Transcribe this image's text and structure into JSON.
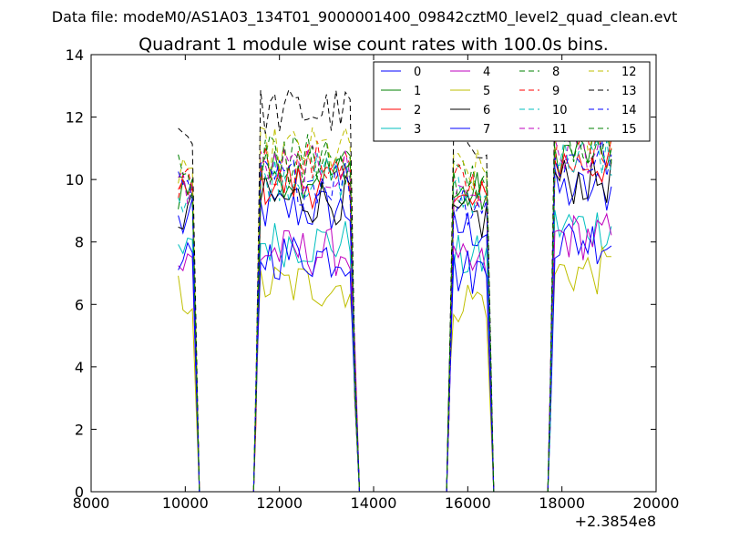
{
  "chart_data": {
    "type": "line",
    "suptitle": "Data file: modeM0/AS1A03_134T01_9000001400_09842cztM0_level2_quad_clean.evt",
    "title": "Quadrant 1 module wise count rates with 100.0s bins.",
    "xlabel": "",
    "ylabel": "",
    "offset_label": "+2.3854e8",
    "xlim": [
      8000,
      20000
    ],
    "ylim": [
      0,
      14
    ],
    "x_ticks": [
      "8000",
      "10000",
      "12000",
      "14000",
      "16000",
      "18000",
      "20000"
    ],
    "y_ticks": [
      "0",
      "2",
      "4",
      "6",
      "8",
      "10",
      "12",
      "14"
    ],
    "legend_position": "top-right",
    "legend_columns": 4,
    "segments": [
      {
        "start": 9850,
        "end": 10200
      },
      {
        "start": 11500,
        "end": 13600
      },
      {
        "start": 15600,
        "end": 16450
      },
      {
        "start": 17750,
        "end": 19050
      }
    ],
    "zero_gaps": [
      {
        "start": 10300,
        "end": 11450
      },
      {
        "start": 13700,
        "end": 15550
      },
      {
        "start": 16550,
        "end": 17700
      }
    ],
    "bin_width": 100,
    "series": [
      {
        "name": "0",
        "color": "#0000ff",
        "style": "solid",
        "level": 8.6
      },
      {
        "name": "1",
        "color": "#008000",
        "style": "solid",
        "level": 9.7
      },
      {
        "name": "2",
        "color": "#ff0000",
        "style": "solid",
        "level": 9.4
      },
      {
        "name": "3",
        "color": "#00bfbf",
        "style": "solid",
        "level": 7.6
      },
      {
        "name": "4",
        "color": "#bf00bf",
        "style": "solid",
        "level": 7.3
      },
      {
        "name": "5",
        "color": "#bfbf00",
        "style": "solid",
        "level": 6.3
      },
      {
        "name": "6",
        "color": "#000000",
        "style": "solid",
        "level": 8.9
      },
      {
        "name": "7",
        "color": "#0000ff",
        "style": "solid",
        "level": 7.2
      },
      {
        "name": "8",
        "color": "#008000",
        "style": "dashed",
        "level": 10.2
      },
      {
        "name": "9",
        "color": "#ff0000",
        "style": "dashed",
        "level": 10.0
      },
      {
        "name": "10",
        "color": "#00bfbf",
        "style": "dashed",
        "level": 9.6
      },
      {
        "name": "11",
        "color": "#bf00bf",
        "style": "dashed",
        "level": 9.8
      },
      {
        "name": "12",
        "color": "#bfbf00",
        "style": "dashed",
        "level": 10.4
      },
      {
        "name": "13",
        "color": "#000000",
        "style": "dashed",
        "level": 11.6
      },
      {
        "name": "14",
        "color": "#0000ff",
        "style": "dashed",
        "level": 9.5
      },
      {
        "name": "15",
        "color": "#008000",
        "style": "dashed",
        "level": 10.1
      }
    ]
  }
}
